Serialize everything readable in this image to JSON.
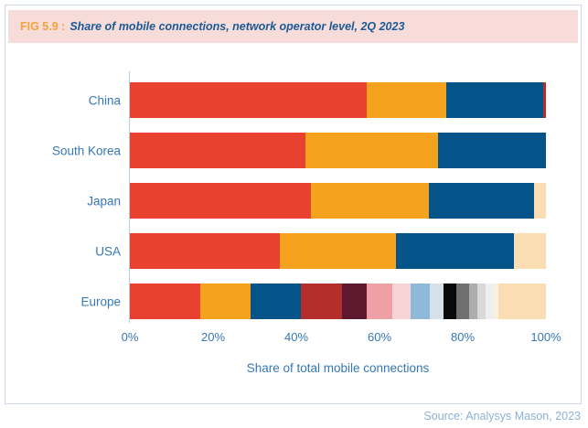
{
  "figure": {
    "tag": "FIG 5.9 :",
    "title": "Share of mobile connections, network operator level, 2Q 2023",
    "source": "Source: Analysys Mason, 2023"
  },
  "colors": {
    "header_bg": "#f8dcd9",
    "tag_orange": "#f2a33c",
    "title_blue": "#1a5a96",
    "axis_text": "#3577b5",
    "label_text": "#3577b5",
    "source_text": "#8cb0d4",
    "card_border": "#ccd8e8",
    "axis_line": "#b9cfdf"
  },
  "chart_data": {
    "type": "bar",
    "orientation": "horizontal_stacked",
    "title": "Share of mobile connections, network operator level, 2Q 2023",
    "xlabel": "Share of total mobile connections",
    "ylabel": "",
    "xlim": [
      0,
      100
    ],
    "x_ticks": [
      "0%",
      "20%",
      "40%",
      "60%",
      "80%",
      "100%"
    ],
    "grid": false,
    "legend": false,
    "unit": "percent of total mobile connections",
    "categories": [
      "China",
      "South Korea",
      "Japan",
      "USA",
      "Europe"
    ],
    "rows": [
      {
        "category": "China",
        "segments": [
          {
            "color": "#e8412f",
            "value": 57.0
          },
          {
            "color": "#f5a31f",
            "value": 19.0
          },
          {
            "color": "#045389",
            "value": 23.3
          },
          {
            "color": "#b42f2b",
            "value": 0.7
          }
        ]
      },
      {
        "category": "South Korea",
        "segments": [
          {
            "color": "#e8412f",
            "value": 42.2
          },
          {
            "color": "#f5a31f",
            "value": 31.9
          },
          {
            "color": "#045389",
            "value": 25.9
          }
        ]
      },
      {
        "category": "Japan",
        "segments": [
          {
            "color": "#e8412f",
            "value": 43.5
          },
          {
            "color": "#f5a31f",
            "value": 28.4
          },
          {
            "color": "#045389",
            "value": 25.2
          },
          {
            "color": "#faddb3",
            "value": 2.9
          }
        ]
      },
      {
        "category": "USA",
        "segments": [
          {
            "color": "#e8412f",
            "value": 36.0
          },
          {
            "color": "#f5a31f",
            "value": 28.0
          },
          {
            "color": "#045389",
            "value": 28.3
          },
          {
            "color": "#faddb3",
            "value": 7.7
          }
        ]
      },
      {
        "category": "Europe",
        "segments": [
          {
            "color": "#e8412f",
            "value": 17.0
          },
          {
            "color": "#f5a31f",
            "value": 12.0
          },
          {
            "color": "#045389",
            "value": 12.0
          },
          {
            "color": "#b42f2b",
            "value": 10.0
          },
          {
            "color": "#5d1a2e",
            "value": 6.0
          },
          {
            "color": "#efa0a4",
            "value": 6.0
          },
          {
            "color": "#f8d3d6",
            "value": 4.5
          },
          {
            "color": "#8fb9d9",
            "value": 4.5
          },
          {
            "color": "#d6e0e8",
            "value": 3.5
          },
          {
            "color": "#0a0a0a",
            "value": 3.0
          },
          {
            "color": "#6f6f6f",
            "value": 3.0
          },
          {
            "color": "#adadad",
            "value": 2.0
          },
          {
            "color": "#d9d9d9",
            "value": 2.0
          },
          {
            "color": "#efefef",
            "value": 2.0
          },
          {
            "color": "#faf0e0",
            "value": 1.0
          },
          {
            "color": "#faddb3",
            "value": 11.5
          }
        ]
      }
    ]
  }
}
